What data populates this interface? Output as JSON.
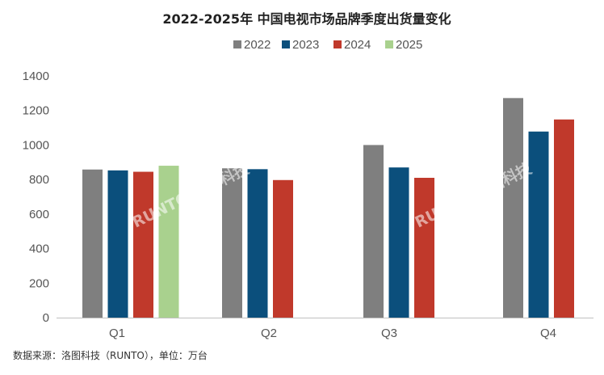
{
  "chart_data": {
    "type": "bar",
    "title": "2022-2025年 中国电视市场品牌季度出货量变化",
    "categories": [
      "Q1",
      "Q2",
      "Q3",
      "Q4"
    ],
    "series": [
      {
        "name": "2022",
        "color": "#7f7f7f",
        "values": [
          858,
          865,
          1000,
          1272
        ]
      },
      {
        "name": "2023",
        "color": "#0b4f7c",
        "values": [
          853,
          860,
          870,
          1078
        ]
      },
      {
        "name": "2024",
        "color": "#c0392b",
        "values": [
          845,
          797,
          810,
          1148
        ]
      },
      {
        "name": "2025",
        "color": "#a9d18e",
        "values": [
          880,
          null,
          null,
          null
        ]
      }
    ],
    "yticks": [
      "0",
      "200",
      "400",
      "600",
      "800",
      "1000",
      "1200",
      "1400"
    ],
    "ylim": [
      0,
      1400
    ],
    "legend_position": "top-center",
    "grid": false
  },
  "source_note": "数据来源：洛图科技（RUNTO），单位：万台",
  "watermarks": [
    "RUNTO 洛图科技",
    "RUNTO 洛图科技"
  ]
}
